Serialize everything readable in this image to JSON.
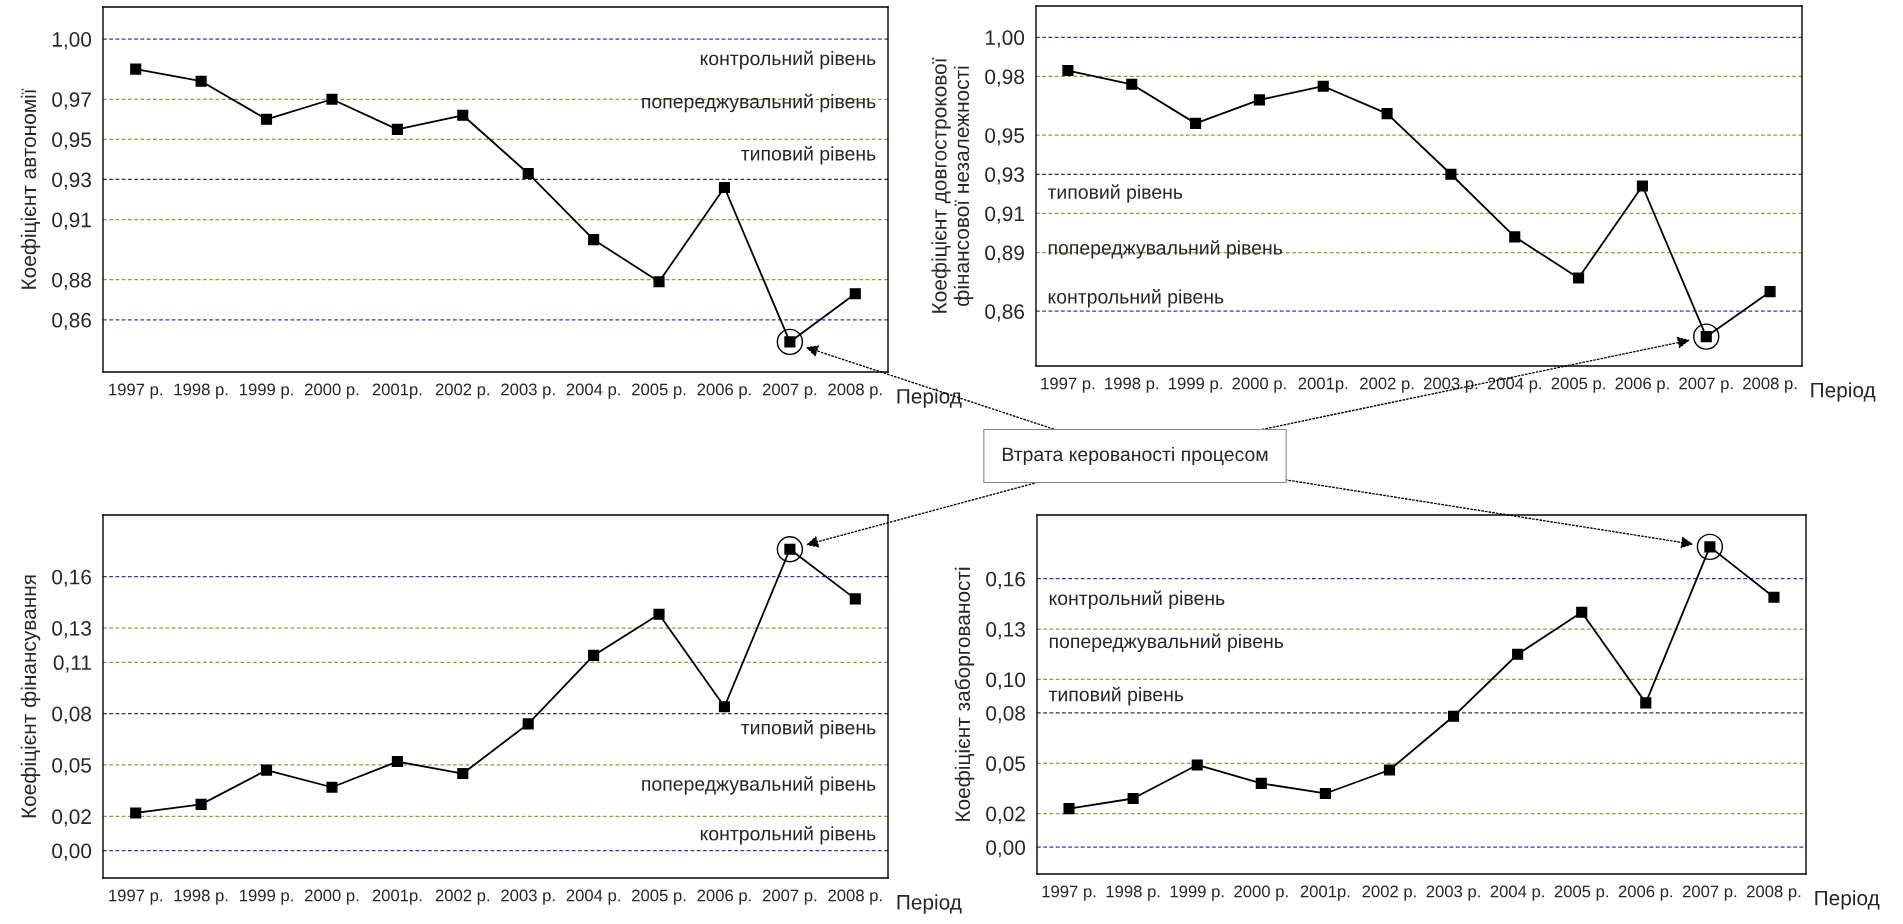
{
  "chart_data": [
    {
      "type": "line",
      "ylabel": "Коефіцієнт автономії",
      "xlabel": "Період",
      "categories": [
        "1997 р.",
        "1998 р.",
        "1999 р.",
        "2000 р.",
        "2001р.",
        "2002 р.",
        "2003 р.",
        "2004 р.",
        "2005 р.",
        "2006 р.",
        "2007 р.",
        "2008 р."
      ],
      "series": [
        {
          "color": "#000000",
          "values": [
            0.985,
            0.979,
            0.96,
            0.97,
            0.955,
            0.962,
            0.933,
            0.9,
            0.879,
            0.926,
            0.849,
            0.873
          ]
        }
      ],
      "ylim": [
        0.834,
        1.016
      ],
      "yticks": [
        {
          "value": 0.86,
          "label": "0,86"
        },
        {
          "value": 0.88,
          "label": "0,88"
        },
        {
          "value": 0.91,
          "label": "0,91"
        },
        {
          "value": 0.93,
          "label": "0,93"
        },
        {
          "value": 0.95,
          "label": "0,95"
        },
        {
          "value": 0.97,
          "label": "0,97"
        },
        {
          "value": 1.0,
          "label": "1,00"
        }
      ],
      "ref_lines": [
        {
          "axis": "y",
          "value": 0.86,
          "color": "#3333cc",
          "line_style": "dashed"
        },
        {
          "axis": "y",
          "value": 0.88,
          "color": "#999933",
          "line_style": "dashed"
        },
        {
          "axis": "y",
          "value": 0.91,
          "color": "#999933",
          "line_style": "dashed"
        },
        {
          "axis": "y",
          "value": 0.93,
          "color": "#333333",
          "line_style": "dashed"
        },
        {
          "axis": "y",
          "value": 0.95,
          "color": "#999933",
          "line_style": "dashed"
        },
        {
          "axis": "y",
          "value": 0.97,
          "color": "#999933",
          "line_style": "dashed"
        },
        {
          "axis": "y",
          "value": 1.0,
          "color": "#3333cc",
          "line_style": "dashed"
        }
      ],
      "annotations": [
        "Втрата керованості процесом",
        "контрольний рівень",
        "попереджувальний рівень",
        "типовий рівень"
      ],
      "marker": "square",
      "line_style": "solid",
      "legend": false,
      "grid": false
    },
    {
      "type": "line",
      "ylabel": "Коефіцієнт довгострокової\nфінансової незалежності",
      "xlabel": "Період",
      "categories": [
        "1997 р.",
        "1998 р.",
        "1999 р.",
        "2000 р.",
        "2001р.",
        "2002 р.",
        "2003 р.",
        "2004 р.",
        "2005 р.",
        "2006 р.",
        "2007 р.",
        "2008 р."
      ],
      "series": [
        {
          "color": "#000000",
          "values": [
            0.983,
            0.976,
            0.956,
            0.968,
            0.975,
            0.961,
            0.93,
            0.898,
            0.877,
            0.924,
            0.847,
            0.87
          ]
        }
      ],
      "ylim": [
        0.832,
        1.016
      ],
      "yticks": [
        {
          "value": 0.86,
          "label": "0,86"
        },
        {
          "value": 0.89,
          "label": "0,89"
        },
        {
          "value": 0.91,
          "label": "0,91"
        },
        {
          "value": 0.93,
          "label": "0,93"
        },
        {
          "value": 0.95,
          "label": "0,95"
        },
        {
          "value": 0.98,
          "label": "0,98"
        },
        {
          "value": 1.0,
          "label": "1,00"
        }
      ],
      "ref_lines": [
        {
          "axis": "y",
          "value": 0.86,
          "color": "#3333cc",
          "line_style": "dashed"
        },
        {
          "axis": "y",
          "value": 0.89,
          "color": "#999933",
          "line_style": "dashed"
        },
        {
          "axis": "y",
          "value": 0.91,
          "color": "#999933",
          "line_style": "dashed"
        },
        {
          "axis": "y",
          "value": 0.93,
          "color": "#333333",
          "line_style": "dashed"
        },
        {
          "axis": "y",
          "value": 0.95,
          "color": "#999933",
          "line_style": "dashed"
        },
        {
          "axis": "y",
          "value": 0.98,
          "color": "#999933",
          "line_style": "dashed"
        },
        {
          "axis": "y",
          "value": 1.0,
          "color": "#3333cc",
          "line_style": "dashed"
        }
      ],
      "annotations": [
        "типовий рівень",
        "попереджувальний рівень",
        "контрольний рівень"
      ],
      "marker": "square",
      "line_style": "solid",
      "legend": false,
      "grid": false
    },
    {
      "type": "line",
      "ylabel": "Коефіцієнт фінансування",
      "xlabel": "Період",
      "categories": [
        "1997 р.",
        "1998 р.",
        "1999 р.",
        "2000 р.",
        "2001р.",
        "2002 р.",
        "2003 р.",
        "2004 р.",
        "2005 р.",
        "2006 р.",
        "2007 р.",
        "2008 р."
      ],
      "series": [
        {
          "color": "#000000",
          "values": [
            0.022,
            0.027,
            0.047,
            0.037,
            0.052,
            0.045,
            0.074,
            0.114,
            0.138,
            0.084,
            0.176,
            0.147
          ]
        }
      ],
      "ylim": [
        -0.016,
        0.196
      ],
      "yticks": [
        {
          "value": 0.0,
          "label": "0,00"
        },
        {
          "value": 0.02,
          "label": "0,02"
        },
        {
          "value": 0.05,
          "label": "0,05"
        },
        {
          "value": 0.08,
          "label": "0,08"
        },
        {
          "value": 0.11,
          "label": "0,11"
        },
        {
          "value": 0.13,
          "label": "0,13"
        },
        {
          "value": 0.16,
          "label": "0,16"
        }
      ],
      "ref_lines": [
        {
          "axis": "y",
          "value": 0.0,
          "color": "#3333cc",
          "line_style": "dashed"
        },
        {
          "axis": "y",
          "value": 0.02,
          "color": "#999933",
          "line_style": "dashed"
        },
        {
          "axis": "y",
          "value": 0.05,
          "color": "#999933",
          "line_style": "dashed"
        },
        {
          "axis": "y",
          "value": 0.08,
          "color": "#333333",
          "line_style": "dashed"
        },
        {
          "axis": "y",
          "value": 0.11,
          "color": "#999933",
          "line_style": "dashed"
        },
        {
          "axis": "y",
          "value": 0.13,
          "color": "#999933",
          "line_style": "dashed"
        },
        {
          "axis": "y",
          "value": 0.16,
          "color": "#3333cc",
          "line_style": "dashed"
        }
      ],
      "annotations": [
        "типовий рівень",
        "попереджувальний рівень",
        "контрольний рівень"
      ],
      "marker": "square",
      "line_style": "solid",
      "legend": false,
      "grid": false
    },
    {
      "type": "line",
      "ylabel": "Коефіцієнт заборгованості",
      "xlabel": "Період",
      "categories": [
        "1997 р.",
        "1998 р.",
        "1999 р.",
        "2000 р.",
        "2001р.",
        "2002 р.",
        "2003 р.",
        "2004 р.",
        "2005 р.",
        "2006 р.",
        "2007 р.",
        "2008 р."
      ],
      "series": [
        {
          "color": "#000000",
          "values": [
            0.023,
            0.029,
            0.049,
            0.038,
            0.032,
            0.046,
            0.078,
            0.115,
            0.14,
            0.086,
            0.179,
            0.149
          ]
        }
      ],
      "ylim": [
        -0.016,
        0.198
      ],
      "yticks": [
        {
          "value": 0.0,
          "label": "0,00"
        },
        {
          "value": 0.02,
          "label": "0,02"
        },
        {
          "value": 0.05,
          "label": "0,05"
        },
        {
          "value": 0.08,
          "label": "0,08"
        },
        {
          "value": 0.1,
          "label": "0,10"
        },
        {
          "value": 0.13,
          "label": "0,13"
        },
        {
          "value": 0.16,
          "label": "0,16"
        }
      ],
      "ref_lines": [
        {
          "axis": "y",
          "value": 0.0,
          "color": "#3333cc",
          "line_style": "dashed"
        },
        {
          "axis": "y",
          "value": 0.02,
          "color": "#999933",
          "line_style": "dashed"
        },
        {
          "axis": "y",
          "value": 0.05,
          "color": "#999933",
          "line_style": "dashed"
        },
        {
          "axis": "y",
          "value": 0.08,
          "color": "#333333",
          "line_style": "dashed"
        },
        {
          "axis": "y",
          "value": 0.1,
          "color": "#999933",
          "line_style": "dashed"
        },
        {
          "axis": "y",
          "value": 0.13,
          "color": "#999933",
          "line_style": "dashed"
        },
        {
          "axis": "y",
          "value": 0.16,
          "color": "#3333cc",
          "line_style": "dashed"
        }
      ],
      "annotations": [
        "контрольний рівень",
        "попереджувальний рівень",
        "типовий рівень"
      ],
      "marker": "square",
      "line_style": "solid",
      "legend": false,
      "grid": false
    }
  ]
}
